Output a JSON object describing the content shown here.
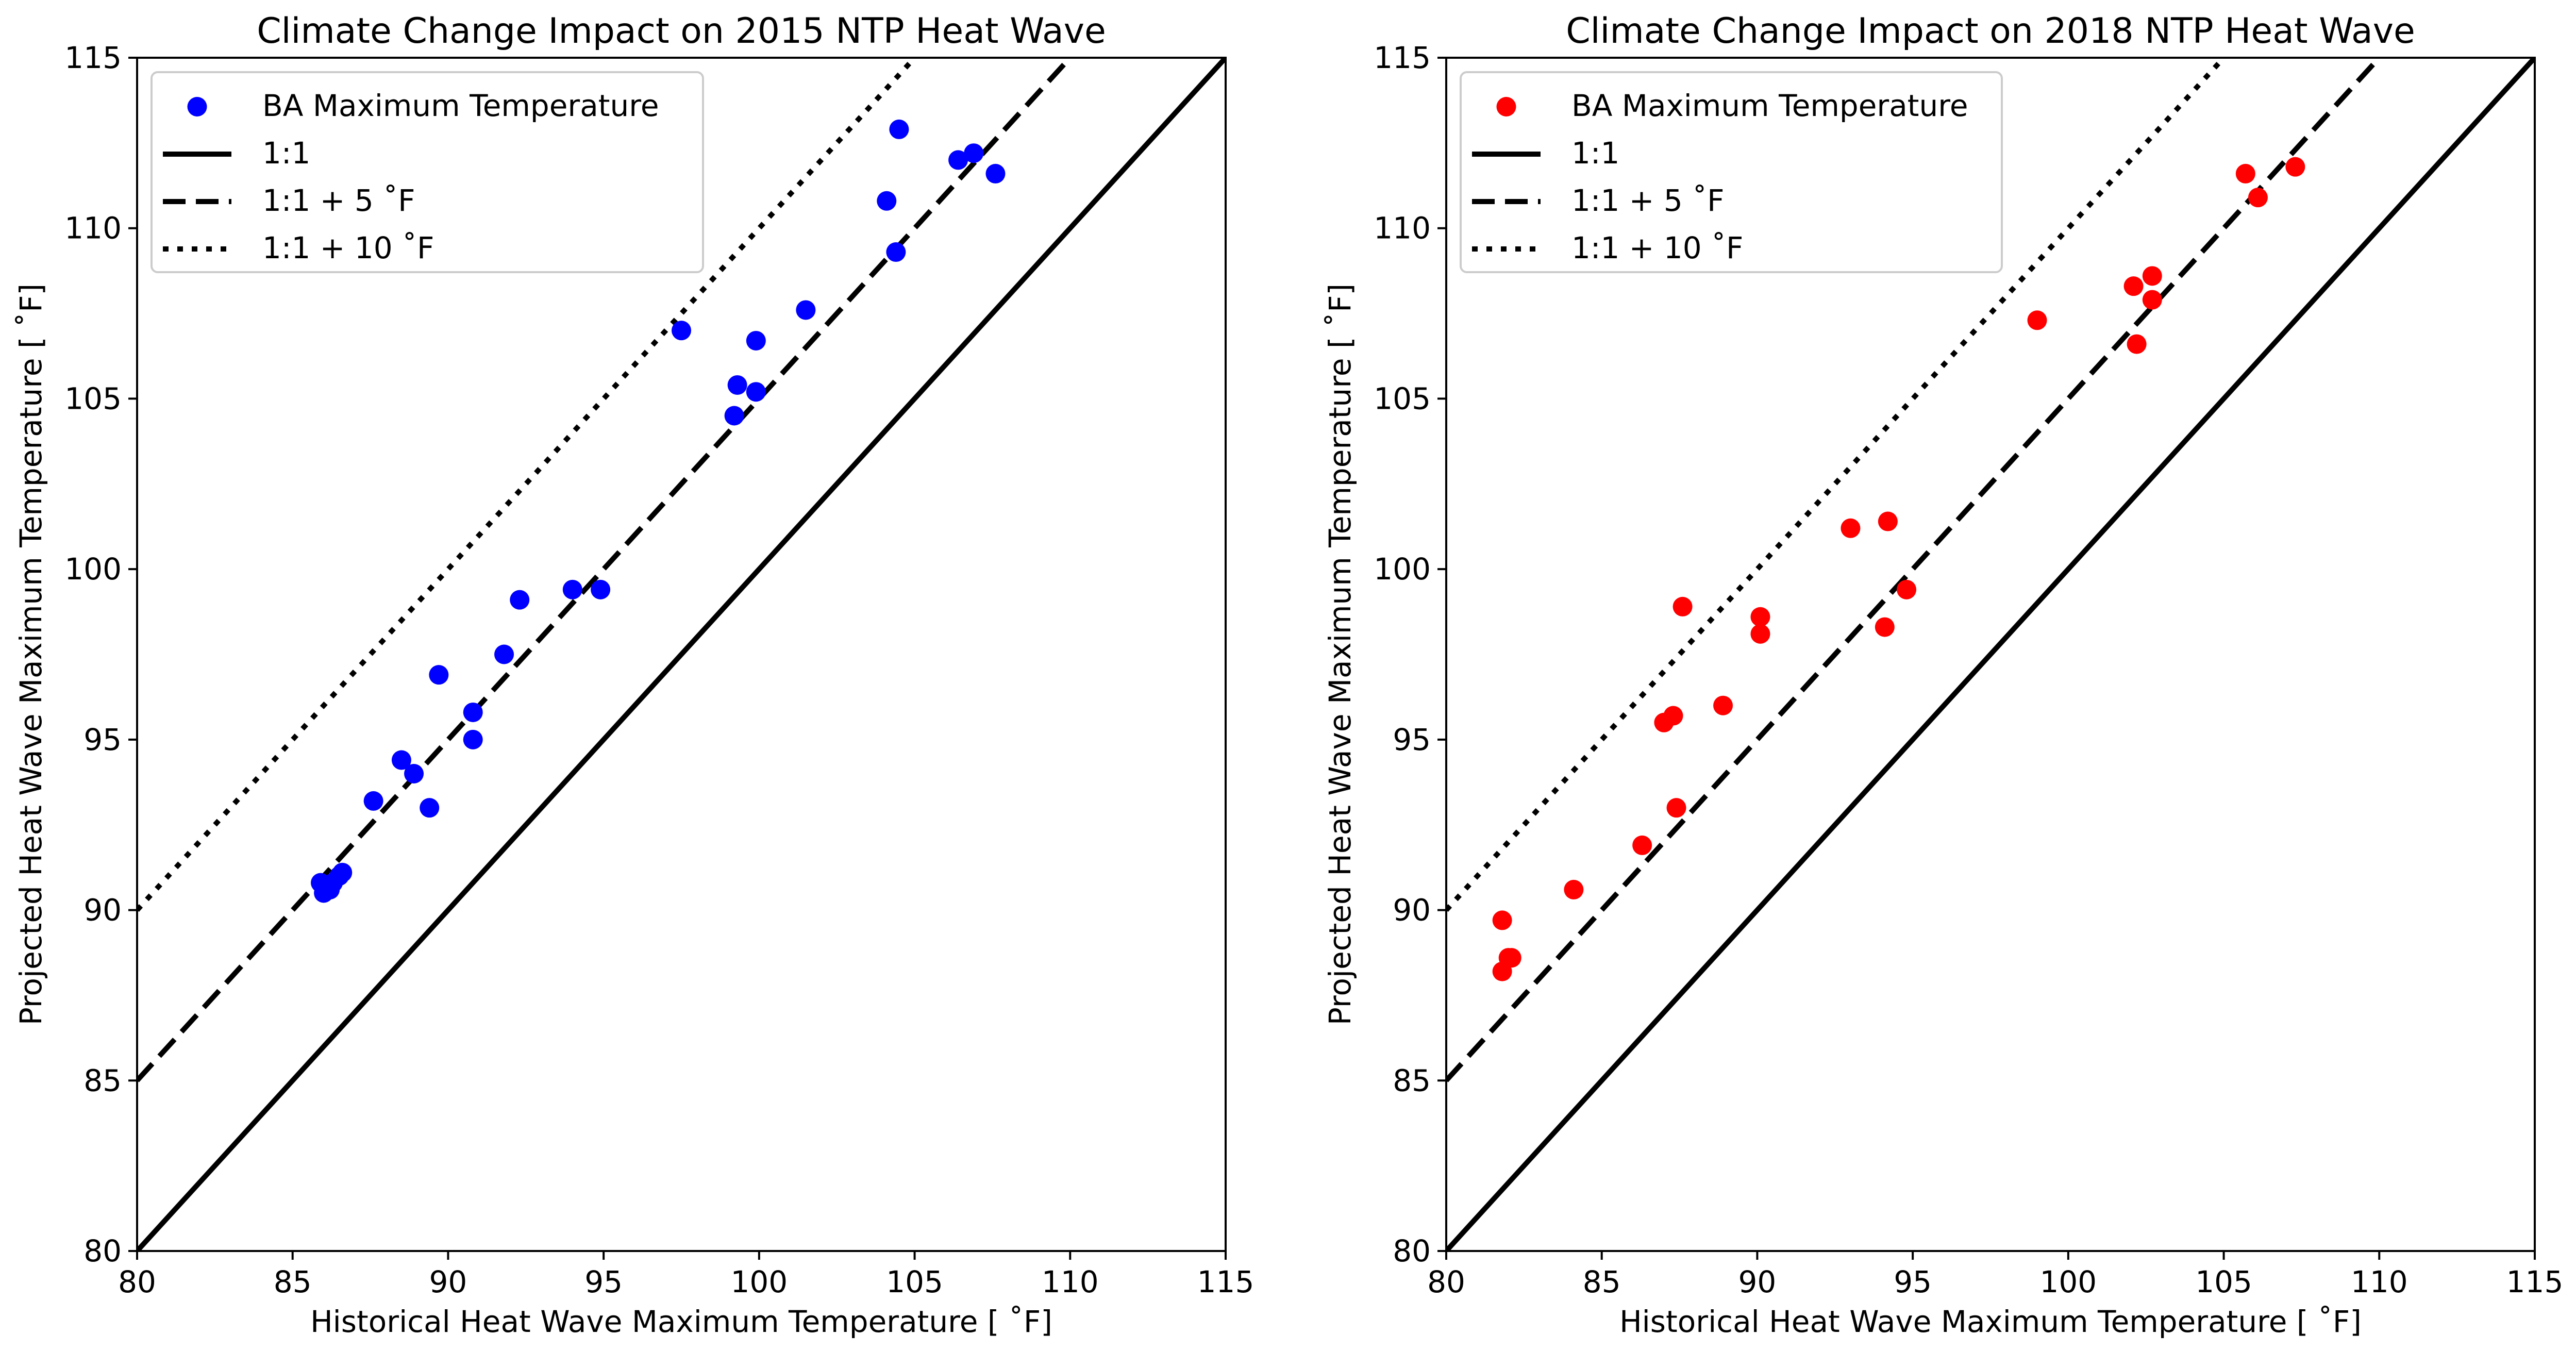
{
  "chart_data": [
    {
      "type": "scatter",
      "title": "Climate Change Impact on 2015 NTP Heat Wave",
      "xlabel": "Historical Heat Wave Maximum Temperature [$^\\circ$F]",
      "ylabel": "Projected Heat Wave Maximum Temperature [$^\\circ$F]",
      "xlabel_display": "Historical Heat Wave Maximum Temperature [ ˚F]",
      "ylabel_display": "Projected Heat Wave Maximum Temperature [ ˚F]",
      "xlim": [
        80,
        115
      ],
      "ylim": [
        80,
        115
      ],
      "xticks": [
        80,
        85,
        90,
        95,
        100,
        105,
        110,
        115
      ],
      "yticks": [
        80,
        85,
        90,
        95,
        100,
        105,
        110,
        115
      ],
      "grid": false,
      "legend_position": "top-left",
      "series": [
        {
          "name": "BA Maximum Temperature",
          "kind": "scatter",
          "color": "#0000ff",
          "points": [
            [
              85.9,
              90.8
            ],
            [
              86.0,
              90.5
            ],
            [
              86.2,
              90.6
            ],
            [
              86.3,
              90.8
            ],
            [
              86.5,
              91.0
            ],
            [
              86.6,
              91.1
            ],
            [
              87.6,
              93.2
            ],
            [
              88.5,
              94.4
            ],
            [
              88.9,
              94.0
            ],
            [
              89.4,
              93.0
            ],
            [
              89.7,
              96.9
            ],
            [
              90.8,
              95.0
            ],
            [
              90.8,
              95.8
            ],
            [
              91.8,
              97.5
            ],
            [
              92.3,
              99.1
            ],
            [
              94.0,
              99.4
            ],
            [
              94.9,
              99.4
            ],
            [
              97.5,
              107.0
            ],
            [
              99.2,
              104.5
            ],
            [
              99.3,
              105.4
            ],
            [
              99.9,
              105.2
            ],
            [
              99.9,
              106.7
            ],
            [
              101.5,
              107.6
            ],
            [
              104.1,
              110.8
            ],
            [
              104.4,
              109.3
            ],
            [
              104.5,
              112.9
            ],
            [
              106.4,
              112.0
            ],
            [
              106.9,
              112.2
            ],
            [
              107.6,
              111.6
            ]
          ]
        },
        {
          "name": "1:1",
          "kind": "line",
          "offset": 0,
          "dash": "solid",
          "color": "#000000"
        },
        {
          "name": "1:1 + 5$^\\circ$F",
          "display": "1:1 + 5 ˚F",
          "kind": "line",
          "offset": 5,
          "dash": "dashed",
          "color": "#000000"
        },
        {
          "name": "1:1 + 10$^\\circ$F",
          "display": "1:1 + 10 ˚F",
          "kind": "line",
          "offset": 10,
          "dash": "dotted",
          "color": "#000000"
        }
      ]
    },
    {
      "type": "scatter",
      "title": "Climate Change Impact on 2018 NTP Heat Wave",
      "xlabel": "Historical Heat Wave Maximum Temperature [$^\\circ$F]",
      "ylabel": "Projected Heat Wave Maximum Temperature [$^\\circ$F]",
      "xlabel_display": "Historical Heat Wave Maximum Temperature [ ˚F]",
      "ylabel_display": "Projected Heat Wave Maximum Temperature [ ˚F]",
      "xlim": [
        80,
        115
      ],
      "ylim": [
        80,
        115
      ],
      "xticks": [
        80,
        85,
        90,
        95,
        100,
        105,
        110,
        115
      ],
      "yticks": [
        80,
        85,
        90,
        95,
        100,
        105,
        110,
        115
      ],
      "grid": false,
      "legend_position": "top-left",
      "series": [
        {
          "name": "BA Maximum Temperature",
          "kind": "scatter",
          "color": "#ff0000",
          "points": [
            [
              81.8,
              89.7
            ],
            [
              81.8,
              88.2
            ],
            [
              82.0,
              88.6
            ],
            [
              82.1,
              88.6
            ],
            [
              84.1,
              90.6
            ],
            [
              86.3,
              91.9
            ],
            [
              87.0,
              95.5
            ],
            [
              87.3,
              95.7
            ],
            [
              87.4,
              93.0
            ],
            [
              87.6,
              98.9
            ],
            [
              88.9,
              96.0
            ],
            [
              90.1,
              98.6
            ],
            [
              90.1,
              98.1
            ],
            [
              93.0,
              101.2
            ],
            [
              94.1,
              98.3
            ],
            [
              94.2,
              101.4
            ],
            [
              94.8,
              99.4
            ],
            [
              99.0,
              107.3
            ],
            [
              102.1,
              108.3
            ],
            [
              102.2,
              106.6
            ],
            [
              102.7,
              108.6
            ],
            [
              102.7,
              107.9
            ],
            [
              105.7,
              111.6
            ],
            [
              106.1,
              110.9
            ],
            [
              107.3,
              111.8
            ]
          ]
        },
        {
          "name": "1:1",
          "kind": "line",
          "offset": 0,
          "dash": "solid",
          "color": "#000000"
        },
        {
          "name": "1:1 + 5$^\\circ$F",
          "display": "1:1 + 5 ˚F",
          "kind": "line",
          "offset": 5,
          "dash": "dashed",
          "color": "#000000"
        },
        {
          "name": "1:1 + 10$^\\circ$F",
          "display": "1:1 + 10 ˚F",
          "kind": "line",
          "offset": 10,
          "dash": "dotted",
          "color": "#000000"
        }
      ]
    }
  ]
}
